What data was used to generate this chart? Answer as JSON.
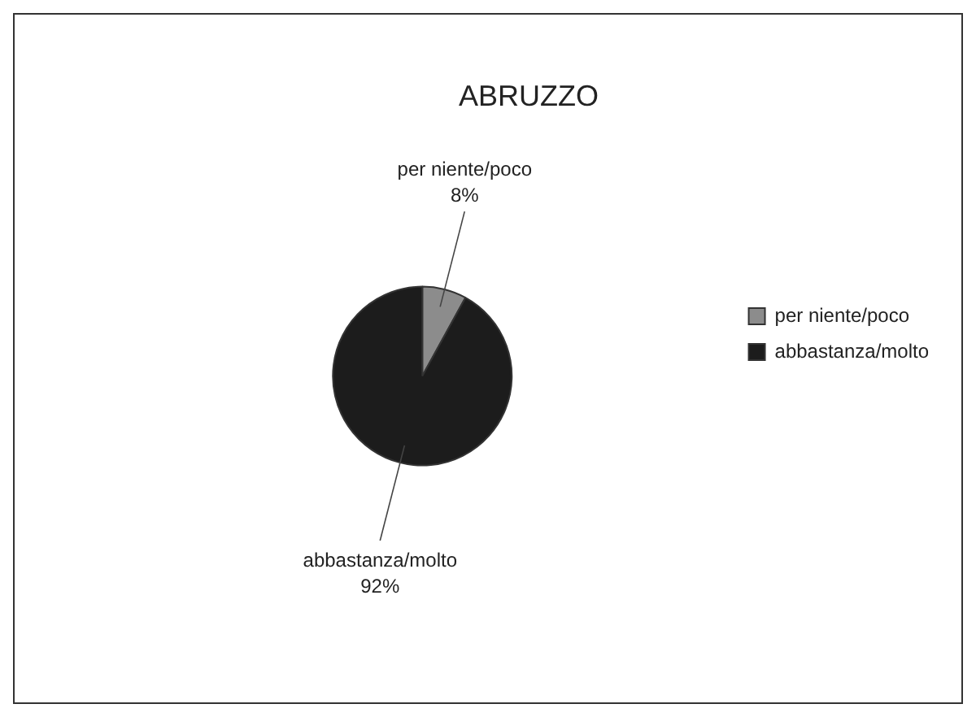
{
  "chart_data": {
    "type": "pie",
    "title": "ABRUZZO",
    "categories": [
      "per niente/poco",
      "abbastanza/molto"
    ],
    "values": [
      8,
      92
    ],
    "colors": [
      "#8c8c8c",
      "#1c1c1c"
    ],
    "value_labels": [
      "8%",
      "92%"
    ],
    "legend": "right"
  }
}
